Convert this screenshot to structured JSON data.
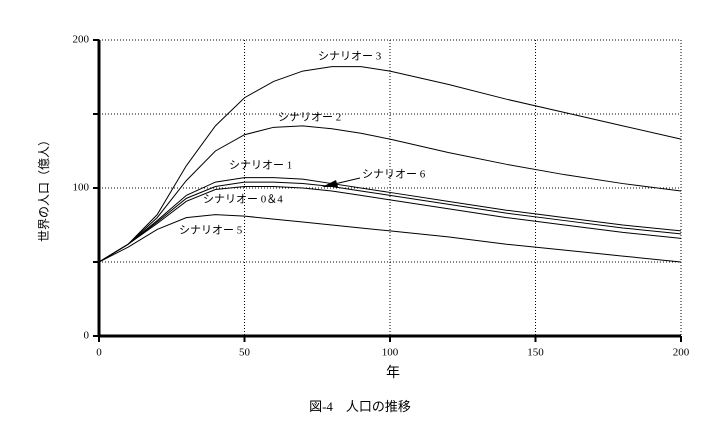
{
  "chart_data": {
    "type": "line",
    "ylabel": "世界の人口（億人）",
    "xlabel": "年",
    "caption": "図-4　人口の推移",
    "x": [
      0,
      10,
      20,
      30,
      40,
      50,
      60,
      70,
      80,
      90,
      100,
      120,
      140,
      160,
      180,
      200
    ],
    "xlim": [
      0,
      200
    ],
    "xticks": [
      0,
      50,
      100,
      150,
      200
    ],
    "ylim": [
      0,
      200
    ],
    "yticks": [
      0,
      100,
      200
    ],
    "minor_yticks": [
      50,
      150
    ],
    "grid": true,
    "series": [
      {
        "name": "シナリオー 3",
        "color": "#000000",
        "values": [
          50,
          62,
          82,
          115,
          142,
          161,
          172,
          179,
          182,
          182,
          179,
          170,
          160,
          151,
          142,
          133
        ]
      },
      {
        "name": "シナリオー 2",
        "color": "#000000",
        "values": [
          50,
          62,
          80,
          105,
          125,
          136,
          141,
          142,
          140,
          137,
          133,
          124,
          116,
          109,
          103,
          98
        ]
      },
      {
        "name": "シナリオー 1",
        "color": "#000000",
        "values": [
          50,
          62,
          78,
          95,
          104,
          107,
          107,
          106,
          103,
          100,
          97,
          91,
          85,
          80,
          75,
          71
        ]
      },
      {
        "name": "シナリオー 6",
        "color": "#000000",
        "values": [
          50,
          62,
          77,
          93,
          101,
          104,
          104,
          103,
          101,
          98,
          95,
          89,
          83,
          78,
          73,
          69
        ]
      },
      {
        "name": "シナリオー 0＆4",
        "color": "#000000",
        "values": [
          50,
          62,
          76,
          91,
          99,
          101,
          101,
          100,
          98,
          95,
          92,
          86,
          80,
          75,
          70,
          66
        ]
      },
      {
        "name": "シナリオー 5",
        "color": "#000000",
        "values": [
          50,
          60,
          72,
          80,
          82,
          81,
          79,
          77,
          75,
          73,
          71,
          67,
          62,
          58,
          54,
          50
        ]
      }
    ]
  }
}
